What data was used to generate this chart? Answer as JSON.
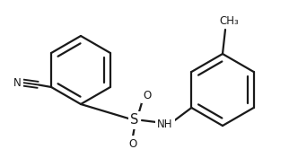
{
  "bg_color": "#ffffff",
  "line_color": "#1a1a1a",
  "line_width": 1.6,
  "font_size": 8.5,
  "figsize": [
    3.22,
    1.86
  ],
  "dpi": 100,
  "xlim": [
    0,
    322
  ],
  "ylim": [
    0,
    186
  ]
}
